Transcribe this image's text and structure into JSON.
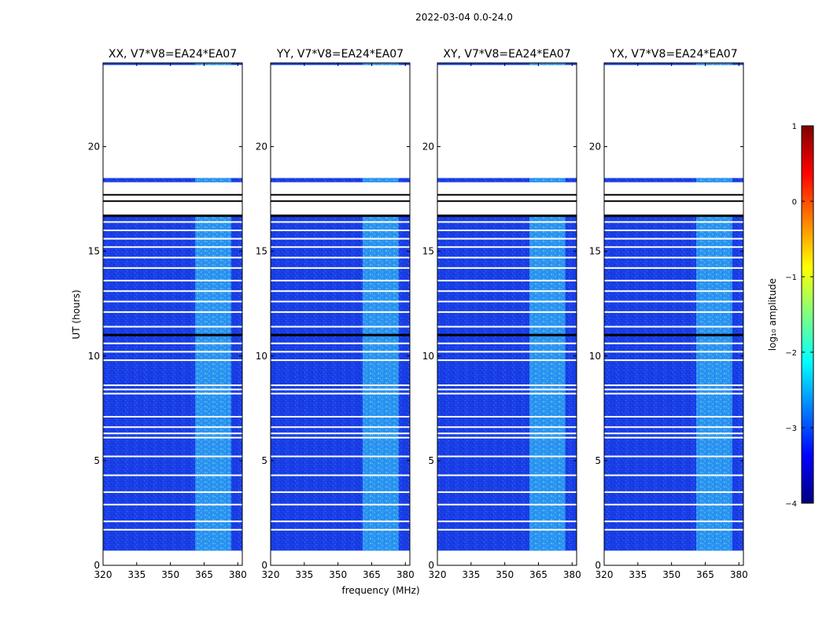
{
  "chart_data": {
    "type": "heatmap",
    "title": "2022-03-04 0.0-24.0",
    "xlabel": "frequency (MHz)",
    "ylabel": "UT (hours)",
    "xlim": [
      320,
      382
    ],
    "ylim": [
      0,
      24
    ],
    "x_ticks": [
      320,
      335,
      350,
      365,
      380
    ],
    "y_ticks": [
      0,
      5,
      10,
      15,
      20
    ],
    "panels": [
      {
        "title": "XX, V7*V8=EA24*EA07"
      },
      {
        "title": "YY, V7*V8=EA24*EA07"
      },
      {
        "title": "XY, V7*V8=EA24*EA07"
      },
      {
        "title": "YX, V7*V8=EA24*EA07"
      }
    ],
    "data_blocks_hours": [
      [
        0.7,
        16.7
      ],
      [
        18.3,
        18.5
      ],
      [
        23.9,
        24.0
      ]
    ],
    "gap_lines_hours": [
      1.7,
      2.1,
      2.9,
      3.5,
      4.3,
      5.2,
      6.1,
      6.3,
      6.6,
      7.1,
      8.2,
      8.4,
      8.6,
      9.8,
      10.2,
      10.6,
      11.4,
      12.1,
      12.6,
      13.1,
      13.6,
      14.2,
      14.7,
      15.2,
      15.6,
      16.0,
      16.4,
      17.4,
      17.7
    ],
    "flagged_lines_hours": [
      11.0,
      16.7
    ],
    "bright_band_mhz": [
      361,
      377
    ],
    "colorbar": {
      "label": "log₁₀ amplitude",
      "range": [
        -4,
        1
      ],
      "ticks": [
        1,
        0,
        -1,
        -2,
        -3,
        -4
      ],
      "colormap": "jet"
    }
  }
}
